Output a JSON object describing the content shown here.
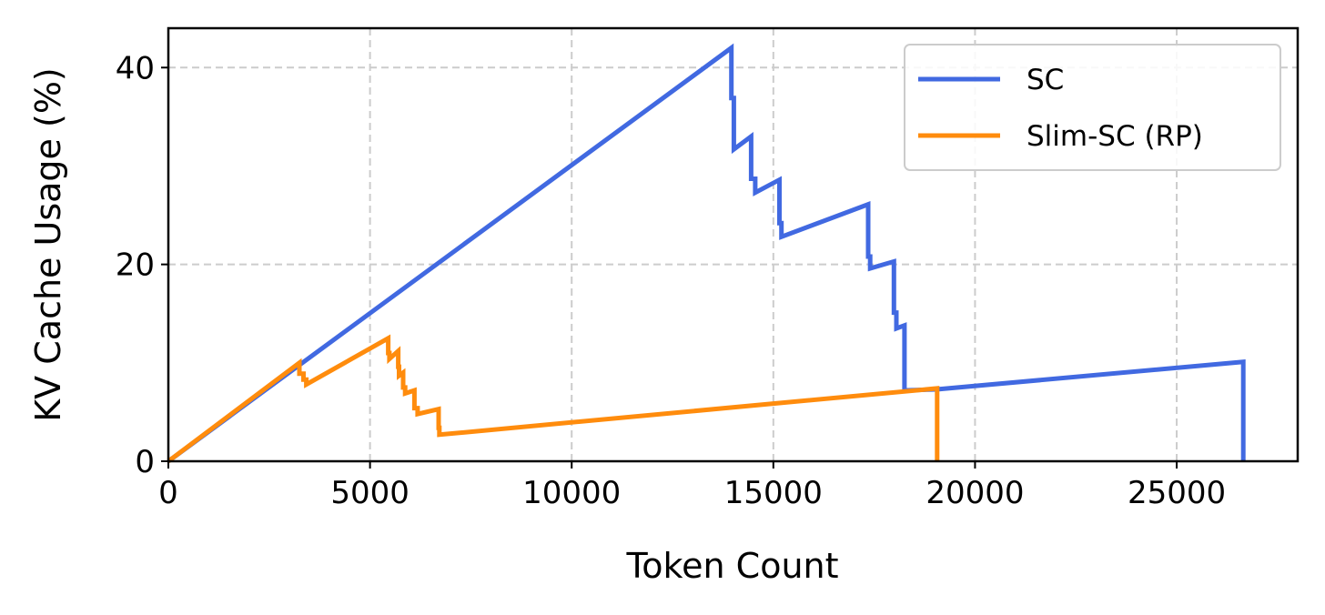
{
  "chart_data": {
    "type": "line",
    "title": "",
    "xlabel": "Token Count",
    "ylabel": "KV Cache Usage (%)",
    "xlim": [
      0,
      28000
    ],
    "ylim": [
      0,
      44
    ],
    "xticks": [
      0,
      5000,
      10000,
      15000,
      20000,
      25000
    ],
    "yticks": [
      0,
      20,
      40
    ],
    "xtick_labels": [
      "0",
      "5000",
      "10000",
      "15000",
      "20000",
      "25000"
    ],
    "ytick_labels": [
      "0",
      "20",
      "40"
    ],
    "grid": true,
    "legend_position": "top-right",
    "series": [
      {
        "name": "SC",
        "color": "#4169e1",
        "x": [
          0,
          13960,
          13960,
          14020,
          14020,
          14450,
          14450,
          14550,
          14550,
          15150,
          15150,
          15200,
          15200,
          17350,
          17350,
          17400,
          17400,
          17990,
          17990,
          18050,
          18050,
          18250,
          18250,
          19050,
          26650,
          26650
        ],
        "y": [
          0,
          42,
          36.9,
          36.9,
          31.7,
          33,
          28.7,
          28.7,
          27.3,
          28.6,
          24.2,
          24.2,
          22.8,
          26.1,
          20.8,
          20.8,
          19.6,
          20.3,
          15.1,
          15.1,
          13.5,
          13.8,
          7.2,
          7.3,
          10.1,
          0
        ]
      },
      {
        "name": "Slim-SC (RP)",
        "color": "#ff8c0d",
        "x": [
          0,
          3250,
          3250,
          3350,
          3350,
          3420,
          3420,
          5450,
          5450,
          5480,
          5480,
          5700,
          5700,
          5720,
          5720,
          5820,
          5820,
          5870,
          5870,
          6100,
          6100,
          6180,
          6180,
          6700,
          6700,
          6720,
          6720,
          19060,
          19060
        ],
        "y": [
          0,
          10,
          8.9,
          8.9,
          8.3,
          8.3,
          7.8,
          12.5,
          11,
          11,
          10.4,
          11.2,
          9.6,
          9.6,
          8.7,
          9,
          7.5,
          7.5,
          6.9,
          7.2,
          5.4,
          5.4,
          4.8,
          5.3,
          3.4,
          3.4,
          2.7,
          7.4,
          0
        ]
      }
    ]
  }
}
